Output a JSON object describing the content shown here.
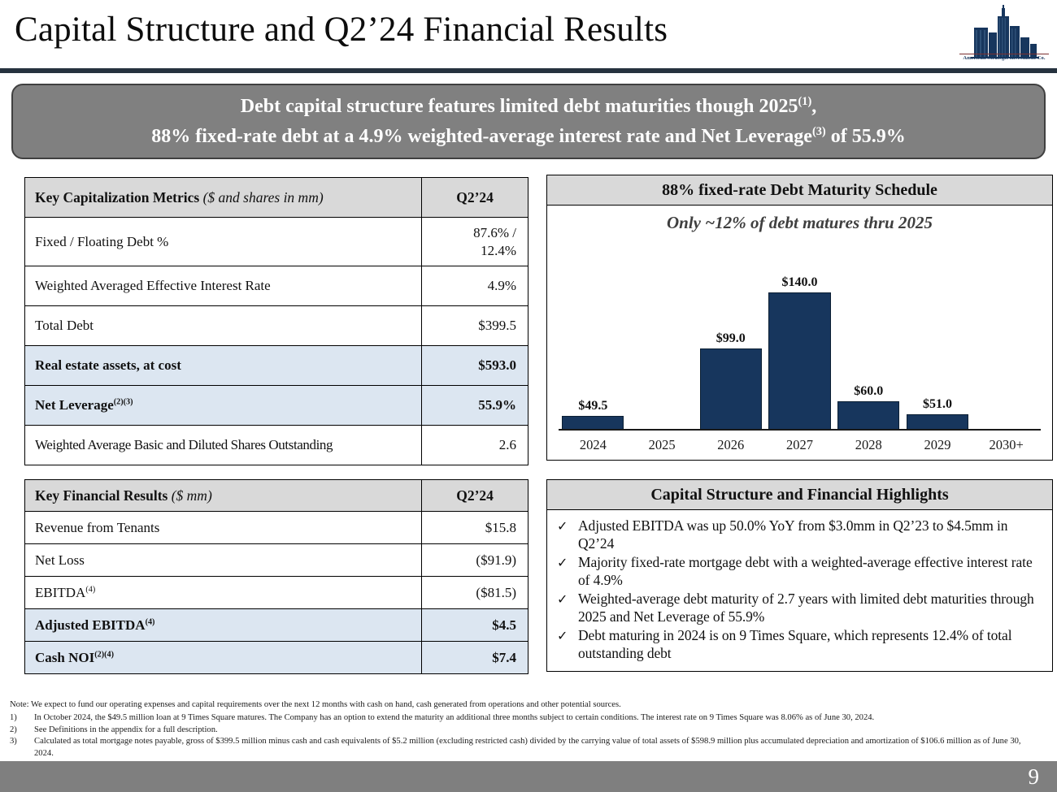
{
  "page": {
    "title": "Capital Structure and Q2’24 Financial Results",
    "page_number": "9"
  },
  "logo": {
    "caption": "American Strategic Investment Co."
  },
  "banner": {
    "line1": "Debt capital structure features limited debt maturities though 2025",
    "line1_sup": "(1)",
    "line1_end": ",",
    "line2": "88% fixed-rate debt at a 4.9% weighted-average interest rate and Net Leverage",
    "line2_sup": "(3)",
    "line2_end": " of 55.9%"
  },
  "cap_table": {
    "header": "Key Capitalization Metrics",
    "header_note": "($ and shares in mm)",
    "col": "Q2’24",
    "rows": [
      {
        "label": "Fixed / Floating Debt %",
        "value": "87.6% /",
        "value2": "12.4%"
      },
      {
        "label": "Weighted Averaged Effective Interest Rate",
        "value": "4.9%"
      },
      {
        "label": "Total Debt",
        "value": "$399.5"
      },
      {
        "label": "Real estate assets, at cost",
        "value": "$593.0"
      },
      {
        "label": "Net Leverage",
        "sup": "(2)(3)",
        "value": "55.9%"
      },
      {
        "label": "Weighted Average Basic and Diluted Shares Outstanding",
        "value": "2.6"
      }
    ]
  },
  "fin_table": {
    "header": "Key Financial Results",
    "header_note": "($ mm)",
    "col": "Q2’24",
    "rows": [
      {
        "label": "Revenue from Tenants",
        "value": "$15.8"
      },
      {
        "label": "Net Loss",
        "value": "($91.9)"
      },
      {
        "label": "EBITDA",
        "sup": "(4)",
        "value": "($81.5)"
      },
      {
        "label": "Adjusted EBITDA",
        "sup": "(4)",
        "value": "$4.5"
      },
      {
        "label": "Cash NOI",
        "sup": "(2)(4)",
        "value": "$7.4"
      }
    ]
  },
  "chart_data": {
    "type": "bar",
    "title": "88% fixed-rate Debt Maturity Schedule",
    "subtitle": "Only ~12% of debt matures thru 2025",
    "categories": [
      "2024",
      "2025",
      "2026",
      "2027",
      "2028",
      "2029",
      "2030+"
    ],
    "values": [
      49.5,
      0,
      99.0,
      140.0,
      60.0,
      51.0,
      0
    ],
    "labels": [
      "$49.5",
      "",
      "$99.0",
      "$140.0",
      "$60.0",
      "$51.0",
      ""
    ],
    "bar_color": "#17365d",
    "ylim": [
      40,
      170
    ],
    "grid": false,
    "legend": false,
    "xlabel": "",
    "ylabel": ""
  },
  "highlights": {
    "title": "Capital Structure and Financial Highlights",
    "check_icon": "✓",
    "items": [
      "Adjusted EBITDA was up 50.0% YoY from $3.0mm in Q2’23 to $4.5mm in Q2’24",
      "Majority fixed-rate mortgage debt with a weighted-average effective interest rate of 4.9%",
      "Weighted-average debt maturity of 2.7 years with limited debt maturities through 2025 and Net Leverage of 55.9%",
      "Debt maturing in 2024 is on 9 Times Square, which represents 12.4% of total outstanding debt"
    ]
  },
  "footnotes": {
    "note": "Note: We expect to fund our operating expenses and capital requirements over the next 12 months with cash on hand, cash generated from operations and other potential sources.",
    "items": [
      {
        "num": "1)",
        "text": "In October 2024, the $49.5 million loan at 9 Times Square matures. The Company has an option to extend the maturity an additional three months subject to certain conditions. The interest rate on 9 Times Square was 8.06% as of June 30, 2024."
      },
      {
        "num": "2)",
        "text": "See Definitions in the appendix for a full description."
      },
      {
        "num": "3)",
        "text": "Calculated as total mortgage notes payable, gross of $399.5 million minus cash and cash equivalents of $5.2 million (excluding restricted cash) divided by the carrying value of total assets of $598.9 million plus accumulated depreciation and amortization of $106.6 million as of June 30, 2024."
      },
      {
        "num": "4)",
        "text": "See appendix for Non-GAAP reconciliations."
      }
    ]
  }
}
